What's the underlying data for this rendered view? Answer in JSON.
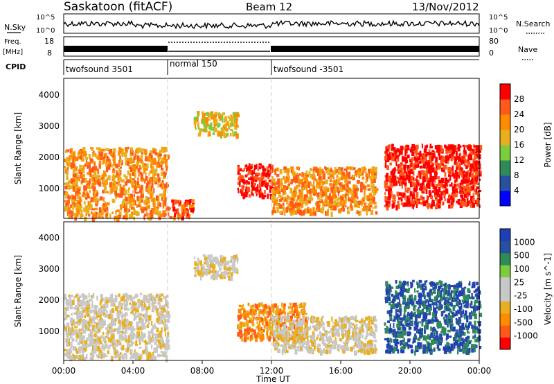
{
  "header": {
    "station": "Saskatoon (fitACF)",
    "beam": "Beam 12",
    "date": "13/Nov/2012"
  },
  "strip_labels": {
    "nsky": "N.Sky",
    "nsky_ticks": [
      "10^5",
      "10^0"
    ],
    "nsearch": "N.Search",
    "freq_line1": "Freq.",
    "freq_line2": "[MHz]",
    "freq_ticks": [
      "18",
      "8"
    ],
    "nave": "Nave",
    "nave_ticks": [
      "80",
      "0"
    ],
    "cpid": "CPID"
  },
  "cpid_segments": [
    {
      "label": "twofsound 3501",
      "start_h": 0,
      "end_h": 6
    },
    {
      "label": "normal 150",
      "start_h": 6,
      "end_h": 12
    },
    {
      "label": "twofsound -3501",
      "start_h": 12,
      "end_h": 24
    }
  ],
  "chart_data": [
    {
      "type": "heatmap",
      "quantity": "Power",
      "ylabel": "Slant Range [km]",
      "colorbar_label": "Power [dB]",
      "colorbar_ticks": [
        "28",
        "24",
        "20",
        "16",
        "12",
        "8",
        "4"
      ],
      "colors": [
        "#0000ff",
        "#2850a0",
        "#2e8b57",
        "#7ccd3c",
        "#e8b020",
        "#ff8c00",
        "#ff5a1a",
        "#ff0000"
      ],
      "x_range_h": [
        0,
        24
      ],
      "y_range_km": [
        200,
        4500
      ],
      "y_ticks": [
        "4000",
        "3000",
        "2000",
        "1000"
      ],
      "regions": [
        {
          "t0": 0.0,
          "t1": 6.0,
          "r0": 250,
          "r1": 2400,
          "level": 5
        },
        {
          "t0": 6.0,
          "t1": 7.5,
          "r0": 250,
          "r1": 800,
          "level": 6
        },
        {
          "t0": 7.5,
          "t1": 10.0,
          "r0": 2800,
          "r1": 3500,
          "level": 4
        },
        {
          "t0": 10.0,
          "t1": 12.0,
          "r0": 900,
          "r1": 1900,
          "level": 7
        },
        {
          "t0": 12.0,
          "t1": 18.0,
          "r0": 400,
          "r1": 1800,
          "level": 5
        },
        {
          "t0": 18.5,
          "t1": 24.0,
          "r0": 600,
          "r1": 2500,
          "level": 7
        }
      ]
    },
    {
      "type": "heatmap",
      "quantity": "Velocity",
      "ylabel": "Slant Range [km]",
      "colorbar_label": "Velocity [m s^-1]",
      "colorbar_ticks": [
        "1000",
        "500",
        "100",
        "25",
        "-25",
        "-100",
        "-500",
        "-1000"
      ],
      "colors": [
        "#ff0000",
        "#ff5a1a",
        "#ff8c00",
        "#e8b020",
        "#c8c8c8",
        "#c8c8c8",
        "#7ccd3c",
        "#2e8b57",
        "#2850a0",
        "#1f3fb4"
      ],
      "x_range_h": [
        0,
        24
      ],
      "y_range_km": [
        200,
        4500
      ],
      "y_ticks": [
        "4000",
        "3000",
        "2000",
        "1000"
      ],
      "regions": [
        {
          "t0": 0.0,
          "t1": 6.0,
          "r0": 300,
          "r1": 2300,
          "level": 4
        },
        {
          "t0": 7.5,
          "t1": 10.0,
          "r0": 2800,
          "r1": 3500,
          "level": 4
        },
        {
          "t0": 10.0,
          "t1": 14.0,
          "r0": 900,
          "r1": 2000,
          "level": 2
        },
        {
          "t0": 12.0,
          "t1": 18.0,
          "r0": 500,
          "r1": 1600,
          "level": 4
        },
        {
          "t0": 18.5,
          "t1": 24.0,
          "r0": 500,
          "r1": 2700,
          "level": 8
        }
      ]
    }
  ],
  "x_axis": {
    "label": "Time UT",
    "ticks": [
      "00:00",
      "04:00",
      "08:00",
      "12:00",
      "16:00",
      "20:00",
      "00:00"
    ]
  }
}
